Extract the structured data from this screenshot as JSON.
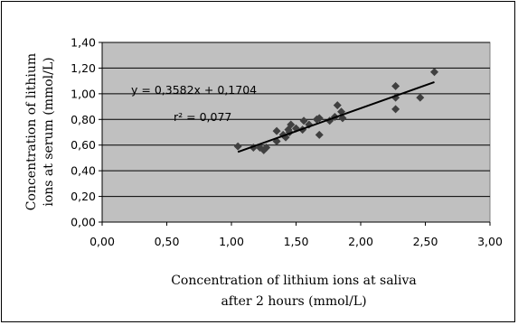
{
  "chart_data": {
    "type": "scatter",
    "xlabel": [
      "Concentration of lithium ions at saliva",
      "after 2 hours (mmol/L)"
    ],
    "ylabel": [
      "Concentration of lithium",
      "ions at serum (mmol/L)"
    ],
    "xlim": [
      0,
      3
    ],
    "ylim": [
      0,
      1.4
    ],
    "x_ticks": [
      "0,00",
      "0,50",
      "1,00",
      "1,50",
      "2,00",
      "2,50",
      "3,00"
    ],
    "y_ticks": [
      "0,00",
      "0,20",
      "0,40",
      "0,60",
      "0,80",
      "1,00",
      "1,20",
      "1,40"
    ],
    "grid": "horizontal",
    "plot_area_color": "#c0c0c0",
    "marker_color": "#404040",
    "trendline": {
      "equation": "y = 0,3582x + 0,1704",
      "r_squared": "r² = 0,077",
      "slope": 0.3582,
      "intercept": 0.1704,
      "x_range": [
        1.05,
        2.57
      ]
    },
    "points": [
      [
        1.05,
        0.59
      ],
      [
        1.17,
        0.58
      ],
      [
        1.22,
        0.58
      ],
      [
        1.25,
        0.56
      ],
      [
        1.27,
        0.58
      ],
      [
        1.35,
        0.63
      ],
      [
        1.35,
        0.71
      ],
      [
        1.4,
        0.68
      ],
      [
        1.42,
        0.66
      ],
      [
        1.44,
        0.72
      ],
      [
        1.45,
        0.7
      ],
      [
        1.46,
        0.76
      ],
      [
        1.5,
        0.73
      ],
      [
        1.55,
        0.72
      ],
      [
        1.56,
        0.79
      ],
      [
        1.6,
        0.76
      ],
      [
        1.66,
        0.8
      ],
      [
        1.68,
        0.81
      ],
      [
        1.68,
        0.68
      ],
      [
        1.76,
        0.79
      ],
      [
        1.8,
        0.82
      ],
      [
        1.82,
        0.91
      ],
      [
        1.85,
        0.86
      ],
      [
        1.86,
        0.81
      ],
      [
        2.27,
        1.06
      ],
      [
        2.27,
        0.97
      ],
      [
        2.27,
        0.88
      ],
      [
        2.46,
        0.97
      ],
      [
        2.57,
        1.17
      ]
    ]
  }
}
